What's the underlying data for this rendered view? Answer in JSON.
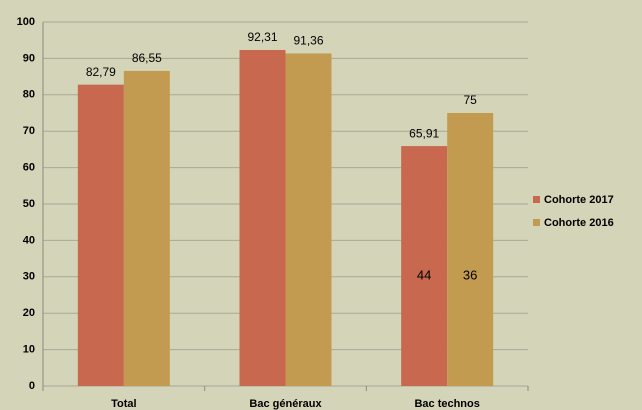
{
  "chart_data": {
    "type": "bar",
    "categories": [
      "Total",
      "Bac généraux",
      "Bac technos"
    ],
    "series": [
      {
        "name": "Cohorte 2017",
        "color": "#c8694f",
        "values": [
          82.79,
          92.31,
          65.91
        ],
        "value_labels": [
          "82,79",
          "92,31",
          "65,91"
        ]
      },
      {
        "name": "Cohorte 2016",
        "color": "#c39b50",
        "values": [
          86.55,
          91.36,
          75
        ],
        "value_labels": [
          "86,55",
          "91,36",
          "75"
        ]
      }
    ],
    "annotations": [
      "44",
      "36"
    ],
    "ylim": [
      0,
      100
    ],
    "yticks": [
      0,
      10,
      20,
      30,
      40,
      50,
      60,
      70,
      80,
      90,
      100
    ],
    "grid": true,
    "legend": "right"
  }
}
